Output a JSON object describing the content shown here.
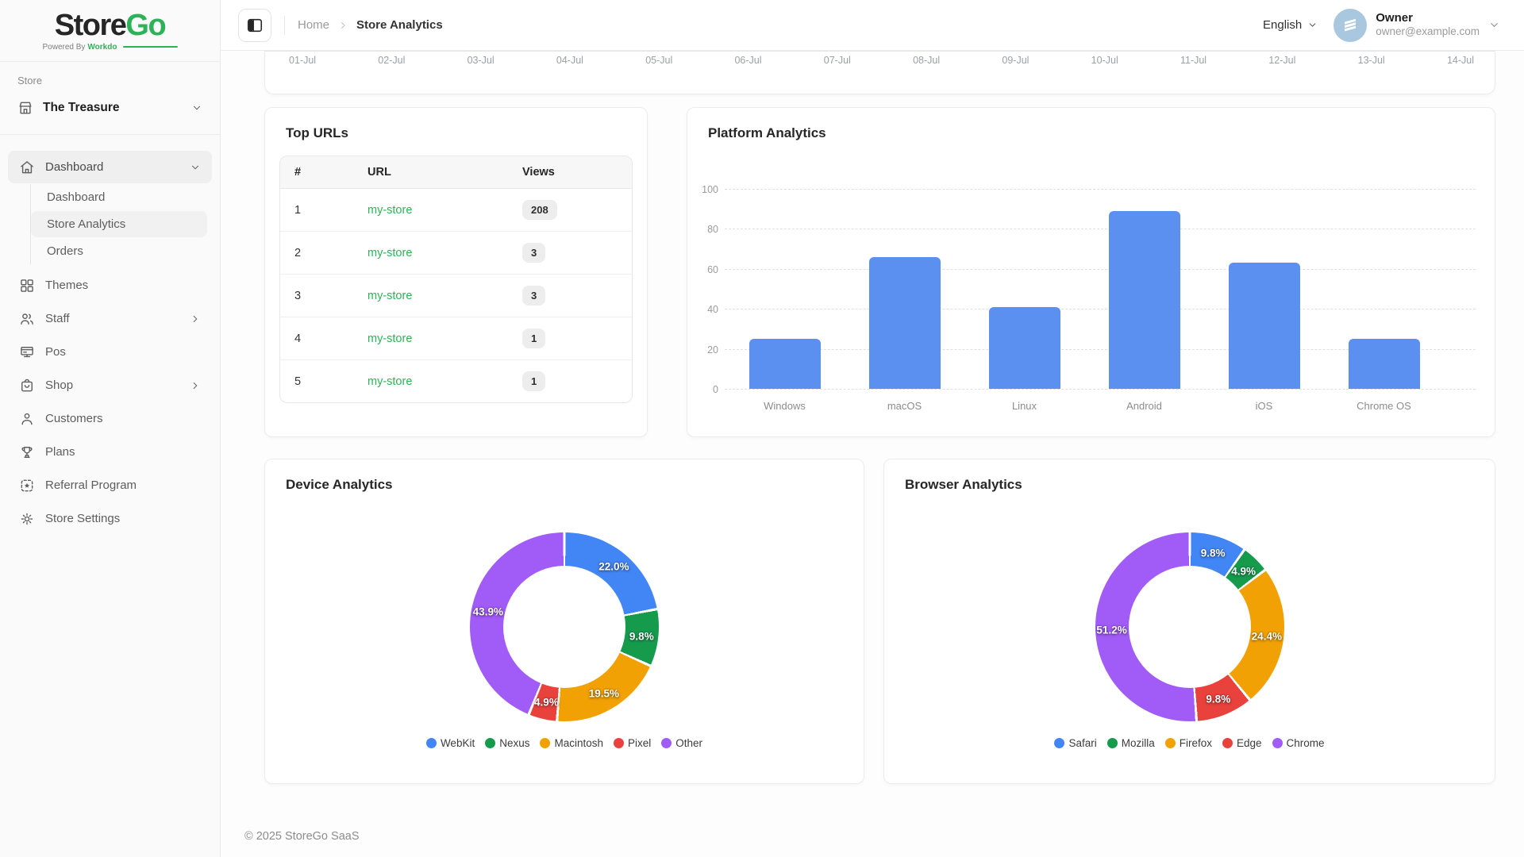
{
  "brand": {
    "name_primary": "Store",
    "name_secondary": "Go",
    "powered_by": "Powered By",
    "powered_by_brand": "Workdo"
  },
  "sidebar": {
    "section_label": "Store",
    "store_name": "The Treasure",
    "nav": [
      {
        "label": "Dashboard",
        "icon": "home",
        "active": true,
        "chevron": "down",
        "children": [
          {
            "label": "Dashboard",
            "active": false
          },
          {
            "label": "Store Analytics",
            "active": true
          },
          {
            "label": "Orders",
            "active": false
          }
        ]
      },
      {
        "label": "Themes",
        "icon": "grid"
      },
      {
        "label": "Staff",
        "icon": "users",
        "chevron": "right"
      },
      {
        "label": "Pos",
        "icon": "pos"
      },
      {
        "label": "Shop",
        "icon": "bag",
        "chevron": "right"
      },
      {
        "label": "Customers",
        "icon": "user"
      },
      {
        "label": "Plans",
        "icon": "trophy"
      },
      {
        "label": "Referral Program",
        "icon": "referral"
      },
      {
        "label": "Store Settings",
        "icon": "gear"
      }
    ]
  },
  "header": {
    "breadcrumb": {
      "home": "Home",
      "current": "Store Analytics"
    },
    "language": "English",
    "user": {
      "name": "Owner",
      "email": "owner@example.com"
    }
  },
  "top_urls": {
    "title": "Top URLs",
    "columns": [
      "#",
      "URL",
      "Views"
    ],
    "rows": [
      {
        "rank": "1",
        "url": "my-store",
        "views": "208"
      },
      {
        "rank": "2",
        "url": "my-store",
        "views": "3"
      },
      {
        "rank": "3",
        "url": "my-store",
        "views": "3"
      },
      {
        "rank": "4",
        "url": "my-store",
        "views": "1"
      },
      {
        "rank": "5",
        "url": "my-store",
        "views": "1"
      }
    ]
  },
  "chart_data": [
    {
      "id": "visitor_timeline",
      "type": "line",
      "note": "chart body scrolled out of view; only x-axis labels visible",
      "x_labels": [
        "01-Jul",
        "02-Jul",
        "03-Jul",
        "04-Jul",
        "05-Jul",
        "06-Jul",
        "07-Jul",
        "08-Jul",
        "09-Jul",
        "10-Jul",
        "11-Jul",
        "12-Jul",
        "13-Jul",
        "14-Jul"
      ]
    },
    {
      "id": "platform",
      "type": "bar",
      "title": "Platform Analytics",
      "categories": [
        "Windows",
        "macOS",
        "Linux",
        "Android",
        "iOS",
        "Chrome OS"
      ],
      "values": [
        25,
        66,
        41,
        89,
        63,
        25
      ],
      "ylim": [
        0,
        100
      ],
      "yticks": [
        0,
        20,
        40,
        60,
        80,
        100
      ],
      "bar_color": "#5B8FF0",
      "grid": "dashed-horizontal",
      "legend": false
    },
    {
      "id": "device",
      "type": "pie",
      "donut": true,
      "title": "Device Analytics",
      "labels": [
        "WebKit",
        "Nexus",
        "Macintosh",
        "Pixel",
        "Other"
      ],
      "values": [
        22.0,
        9.8,
        19.5,
        4.9,
        43.9
      ],
      "value_labels": [
        "22.0%",
        "9.8%",
        "19.5%",
        "4.9%",
        "43.9%"
      ],
      "colors": [
        "#4286F5",
        "#169B4D",
        "#F2A104",
        "#E9423C",
        "#A15BF7"
      ],
      "legend_position": "bottom"
    },
    {
      "id": "browser",
      "type": "pie",
      "donut": true,
      "title": "Browser Analytics",
      "labels": [
        "Safari",
        "Mozilla",
        "Firefox",
        "Edge",
        "Chrome"
      ],
      "values": [
        9.8,
        4.9,
        24.4,
        9.8,
        51.2
      ],
      "value_labels": [
        "9.8%",
        "4.9%",
        "24.4%",
        "9.8%",
        "51.2%"
      ],
      "colors": [
        "#4286F5",
        "#169B4D",
        "#F2A104",
        "#E9423C",
        "#A15BF7"
      ],
      "legend_position": "bottom"
    }
  ],
  "footer": {
    "copyright": "© 2025 StoreGo SaaS"
  },
  "colors": {
    "brand_green": "#2DB357",
    "bar_blue": "#5B8FF0",
    "pie_blue": "#4286F5",
    "pie_green": "#169B4D",
    "pie_orange": "#F2A104",
    "pie_red": "#E9423C",
    "pie_purple": "#A15BF7"
  }
}
